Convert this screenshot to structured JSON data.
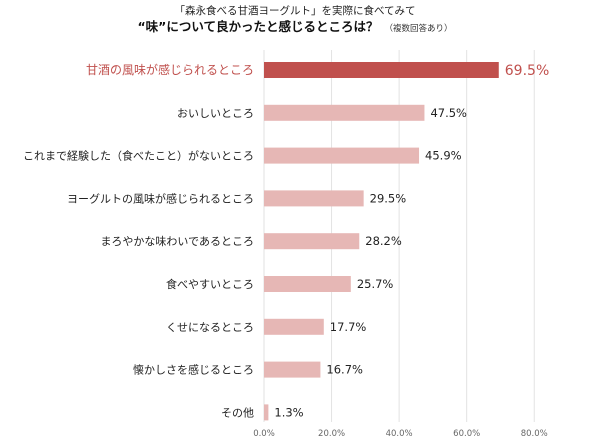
{
  "title": {
    "line1": "「森永食べる甘酒ヨーグルト」を実際に食べてみて",
    "line2": "“味”について良かったと感じるところは？",
    "note": "（複数回答あり）"
  },
  "colors": {
    "highlight": "#c0504d",
    "bar": "#e6b7b5",
    "grid": "#e2e2e2"
  },
  "chart_data": {
    "type": "bar",
    "orientation": "horizontal",
    "categories": [
      "甘酒の風味が感じられるところ",
      "おいしいところ",
      "これまで経験した（食べたこと）がないところ",
      "ヨーグルトの風味が感じられるところ",
      "まろやかな味わいであるところ",
      "食べやすいところ",
      "くせになるところ",
      "懐かしさを感じるところ",
      "その他"
    ],
    "values": [
      69.5,
      47.5,
      45.9,
      29.5,
      28.2,
      25.7,
      17.7,
      16.7,
      1.3
    ],
    "value_labels": [
      "69.5%",
      "47.5%",
      "45.9%",
      "29.5%",
      "28.2%",
      "25.7%",
      "17.7%",
      "16.7%",
      "1.3%"
    ],
    "highlight_index": 0,
    "xlim": [
      0,
      80
    ],
    "xticks": [
      0,
      20,
      40,
      60,
      80
    ],
    "xtick_labels": [
      "0.0%",
      "20.0%",
      "40.0%",
      "60.0%",
      "80.0%"
    ],
    "grid": true
  }
}
